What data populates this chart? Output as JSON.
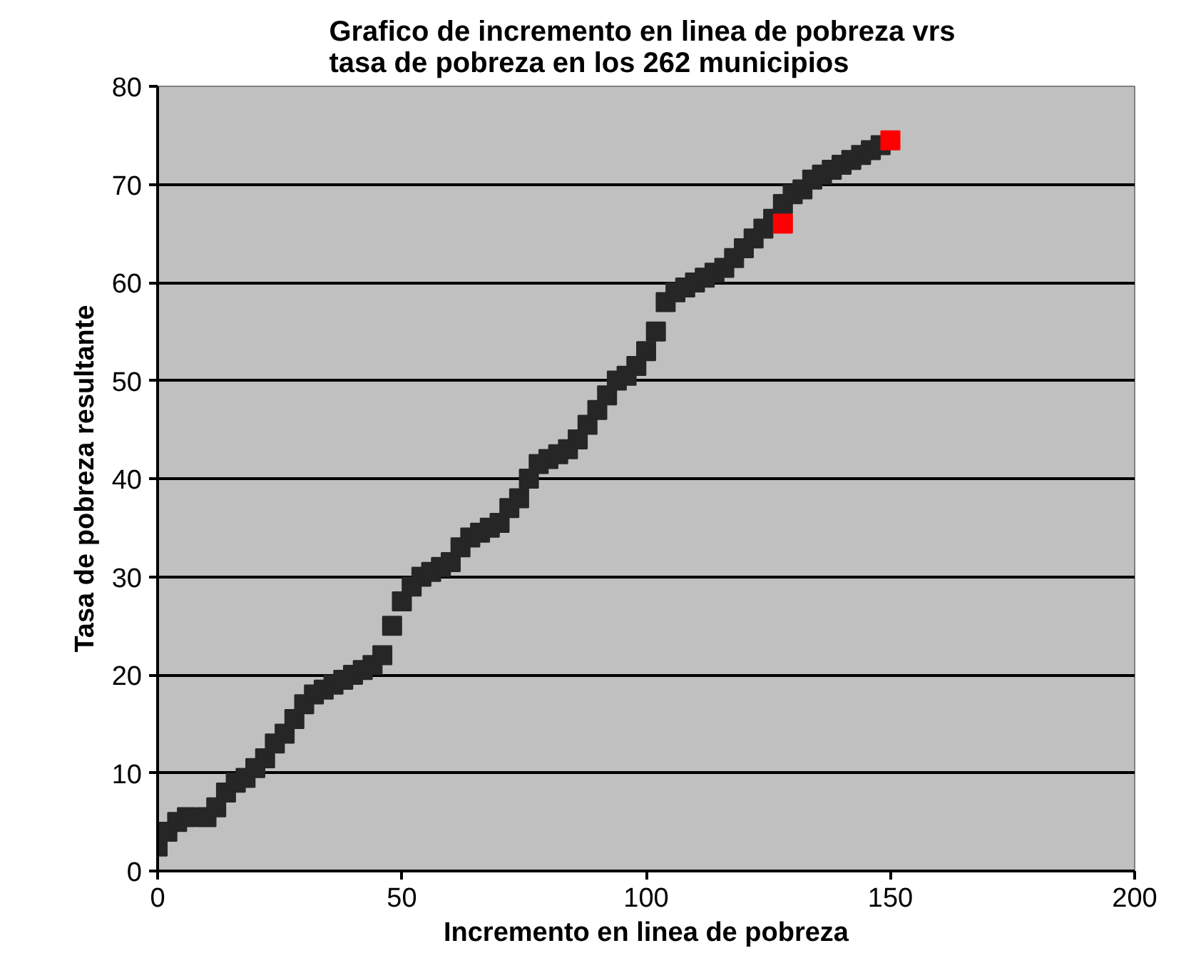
{
  "chart_data": {
    "type": "scatter",
    "title": "Grafico de incremento en  linea de pobreza vrs\ntasa de pobreza en los 262 municipios",
    "xlabel": "Incremento en linea de pobreza",
    "ylabel": "Tasa de pobreza resultante",
    "xlim": [
      0,
      200
    ],
    "xticks": [
      0,
      50,
      100,
      150,
      200
    ],
    "ylim": [
      0,
      80
    ],
    "yticks": [
      0,
      10,
      20,
      30,
      40,
      50,
      60,
      70,
      80
    ],
    "grid": "y",
    "marker": "square",
    "series": [
      {
        "color": "#262626",
        "x": [
          0,
          2,
          4,
          6,
          10,
          12,
          14,
          16,
          18,
          20,
          22,
          24,
          26,
          28,
          30,
          32,
          34,
          36,
          38,
          40,
          42,
          44,
          46,
          48,
          50,
          52,
          54,
          56,
          58,
          60,
          62,
          64,
          66,
          68,
          70,
          72,
          74,
          76,
          78,
          80,
          82,
          84,
          86,
          88,
          90,
          92,
          94,
          96,
          98,
          100,
          102,
          104,
          106,
          108,
          110,
          112,
          114,
          116,
          118,
          120,
          122,
          124,
          126,
          128,
          130,
          132,
          134,
          136,
          138,
          140,
          142,
          144,
          146,
          148
        ],
        "values": [
          2.5,
          4,
          5,
          5.5,
          5.5,
          6.5,
          8,
          9,
          9.5,
          10.5,
          11.5,
          13,
          14,
          15.5,
          17,
          18,
          18.5,
          19,
          19.5,
          20,
          20.5,
          21,
          22,
          25,
          27.5,
          29,
          30,
          30.5,
          31,
          31.5,
          33,
          34,
          34.5,
          35,
          35.5,
          37,
          38,
          40,
          41.5,
          42,
          42.5,
          43,
          44,
          45.5,
          47,
          48.5,
          50,
          50.5,
          51.5,
          53,
          55,
          58,
          59,
          59.5,
          60,
          60.5,
          61,
          61.5,
          62.5,
          63.5,
          64.5,
          65.5,
          66.5,
          68,
          69,
          69.5,
          70.5,
          71,
          71.5,
          72,
          72.5,
          73,
          73.5,
          74
        ]
      },
      {
        "color": "#ff0000",
        "x": [
          128,
          150
        ],
        "values": [
          66,
          74.5
        ]
      }
    ]
  }
}
